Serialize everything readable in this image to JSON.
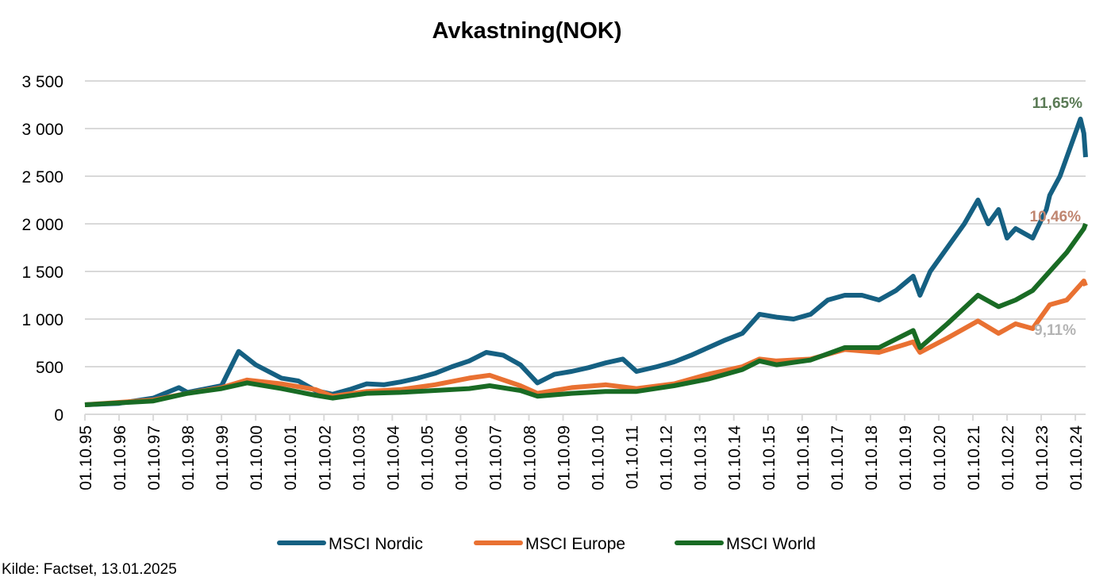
{
  "chart_data": {
    "type": "line",
    "title": "Avkastning(NOK)",
    "xlabel": "",
    "ylabel": "",
    "ylim": [
      0,
      3500
    ],
    "yticks": [
      "0",
      "500",
      "1 000",
      "1 500",
      "2 000",
      "2 500",
      "3 000",
      "3 500"
    ],
    "ytick_values": [
      0,
      500,
      1000,
      1500,
      2000,
      2500,
      3000,
      3500
    ],
    "xlim": [
      1995.75,
      2025.05
    ],
    "xticks": [
      "01.10.95",
      "01.10.96",
      "01.10.97",
      "01.10.98",
      "01.10.99",
      "01.10.00",
      "01.10.01",
      "01.10.02",
      "01.10.03",
      "01.10.04",
      "01.10.05",
      "01.10.06",
      "01.10.07",
      "01.10.08",
      "01.10.09",
      "01.10.10",
      "01.10.11",
      "01.10.12",
      "01.10.13",
      "01.10.14",
      "01.10.15",
      "01.10.16",
      "01.10.17",
      "01.10.18",
      "01.10.19",
      "01.10.20",
      "01.10.21",
      "01.10.22",
      "01.10.23",
      "01.10.24"
    ],
    "grid": true,
    "legend_position": "bottom",
    "series": [
      {
        "name": "MSCI Nordic",
        "color": "#156082",
        "annotation": "11,65%",
        "annotation_color": "#5a7a55",
        "x": [
          1995.75,
          1996.75,
          1997.75,
          1998.5,
          1998.75,
          1999.75,
          2000.25,
          2000.75,
          2001.5,
          2002,
          2002.5,
          2003,
          2003.5,
          2004,
          2004.5,
          2005,
          2005.5,
          2006,
          2006.5,
          2007,
          2007.5,
          2008,
          2008.5,
          2009,
          2009.5,
          2010,
          2010.5,
          2011,
          2011.5,
          2011.9,
          2012.5,
          2013,
          2013.5,
          2014,
          2014.5,
          2015,
          2015.5,
          2016,
          2016.5,
          2017,
          2017.5,
          2018,
          2018.5,
          2019,
          2019.5,
          2020,
          2020.2,
          2020.5,
          2021,
          2021.5,
          2021.9,
          2022.2,
          2022.5,
          2022.75,
          2023,
          2023.5,
          2023.9,
          2024,
          2024.3,
          2024.5,
          2024.9,
          2025,
          2025.05
        ],
        "y": [
          100,
          115,
          170,
          280,
          230,
          300,
          660,
          520,
          380,
          350,
          250,
          210,
          260,
          320,
          310,
          340,
          380,
          430,
          500,
          560,
          650,
          620,
          520,
          330,
          420,
          450,
          490,
          540,
          580,
          450,
          500,
          550,
          620,
          700,
          780,
          850,
          1050,
          1020,
          1000,
          1050,
          1200,
          1250,
          1250,
          1200,
          1300,
          1450,
          1250,
          1500,
          1750,
          2000,
          2250,
          2000,
          2150,
          1850,
          1950,
          1850,
          2150,
          2300,
          2500,
          2700,
          3100,
          2950,
          2700
        ]
      },
      {
        "name": "MSCI Europe",
        "color": "#e97132",
        "annotation": "9,11%",
        "annotation_color": "#b4b4b4",
        "x": [
          1995.75,
          1997.75,
          1998.75,
          1999.75,
          2000.5,
          2001.5,
          2002.5,
          2003,
          2004,
          2005,
          2006,
          2007,
          2007.6,
          2008.5,
          2009,
          2010,
          2011,
          2011.9,
          2013,
          2014,
          2015,
          2015.5,
          2016,
          2017,
          2018,
          2019,
          2020,
          2020.2,
          2021,
          2021.9,
          2022.5,
          2023,
          2023.5,
          2024,
          2024.5,
          2025,
          2025.05
        ],
        "y": [
          100,
          150,
          220,
          280,
          360,
          320,
          260,
          190,
          240,
          260,
          310,
          380,
          410,
          300,
          220,
          280,
          310,
          270,
          320,
          420,
          500,
          580,
          560,
          580,
          680,
          650,
          760,
          650,
          800,
          980,
          850,
          950,
          900,
          1150,
          1200,
          1400,
          1350
        ]
      },
      {
        "name": "MSCI World",
        "color": "#196b24",
        "annotation": "10,46%",
        "annotation_color": "#c08670",
        "x": [
          1995.75,
          1997.75,
          1998.75,
          1999.75,
          2000.5,
          2001.5,
          2002.5,
          2003,
          2004,
          2005,
          2006,
          2007,
          2007.6,
          2008.5,
          2009,
          2010,
          2011,
          2011.9,
          2013,
          2014,
          2015,
          2015.5,
          2016,
          2017,
          2018,
          2019,
          2020,
          2020.2,
          2021,
          2021.9,
          2022.5,
          2023,
          2023.5,
          2024,
          2024.5,
          2025,
          2025.05
        ],
        "y": [
          100,
          140,
          220,
          270,
          330,
          270,
          200,
          170,
          220,
          230,
          250,
          270,
          300,
          250,
          190,
          220,
          240,
          240,
          300,
          370,
          470,
          560,
          520,
          570,
          700,
          700,
          880,
          700,
          950,
          1250,
          1130,
          1200,
          1300,
          1500,
          1700,
          1950,
          2000
        ]
      }
    ]
  },
  "source": "Kilde: Factset, 13.01.2025"
}
